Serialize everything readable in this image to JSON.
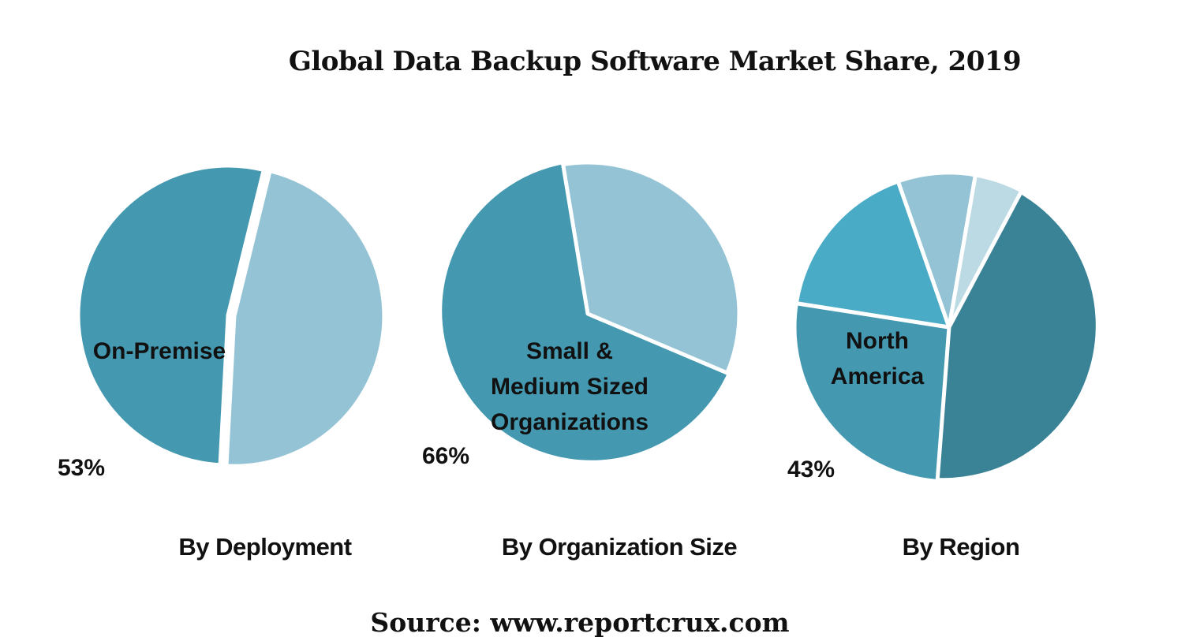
{
  "title": "Global Data Backup Software Market Share, 2019",
  "source": "Source: www.reportcrux.com",
  "chart_data": [
    {
      "type": "pie",
      "caption": "By Deployment",
      "highlight_label": "On-Premise",
      "highlight_value_label": "53%",
      "slices": [
        {
          "label": "On-Premise",
          "value": 53,
          "color": "#4499B0"
        },
        {
          "label": "",
          "value": 47,
          "color": "#93C3D4"
        }
      ]
    },
    {
      "type": "pie",
      "caption": "By Organization Size",
      "highlight_label": "Small & Medium Sized Organizations",
      "highlight_label_lines": [
        "Small &",
        "Medium Sized",
        "Organizations"
      ],
      "highlight_value_label": "66%",
      "slices": [
        {
          "label": "Small & Medium Sized Organizations",
          "value": 66,
          "color": "#4499B0"
        },
        {
          "label": "",
          "value": 34,
          "color": "#93C3D4"
        }
      ]
    },
    {
      "type": "pie",
      "caption": "By Region",
      "highlight_label": "North America",
      "highlight_label_lines": [
        "North",
        "America"
      ],
      "highlight_value_label": "43%",
      "slices": [
        {
          "label": "North America",
          "value": 43,
          "color": "#3A8296"
        },
        {
          "label": "",
          "value": 26,
          "color": "#4499B0"
        },
        {
          "label": "",
          "value": 17,
          "color": "#4AABC6"
        },
        {
          "label": "",
          "value": 8,
          "color": "#93C3D4"
        },
        {
          "label": "",
          "value": 5,
          "color": "#BCDAE4"
        }
      ]
    }
  ]
}
